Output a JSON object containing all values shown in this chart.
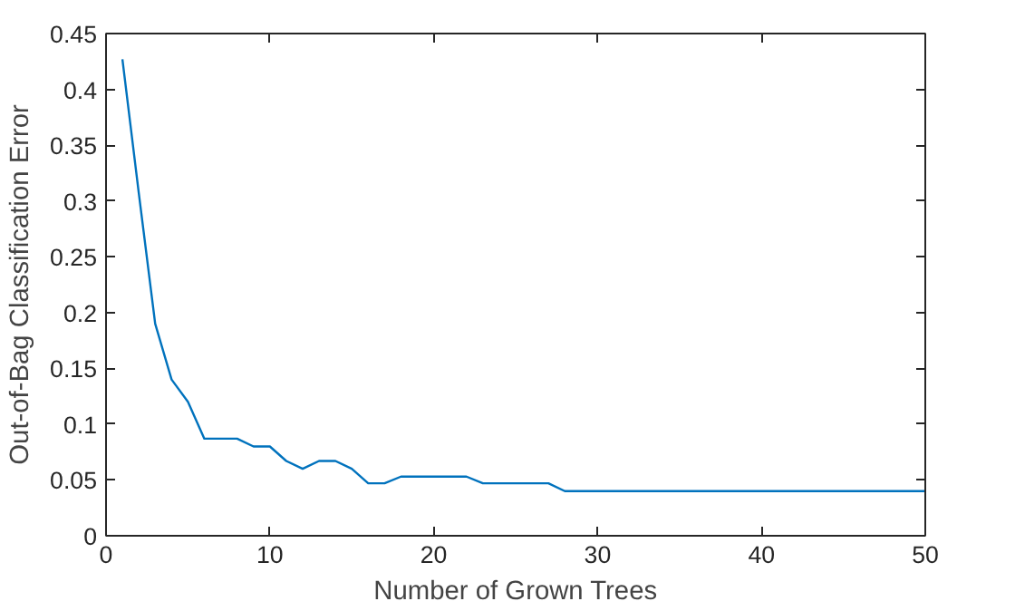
{
  "chart_data": {
    "type": "line",
    "xlabel": "Number of Grown Trees",
    "ylabel": "Out-of-Bag Classification Error",
    "x": [
      1,
      2,
      3,
      4,
      5,
      6,
      7,
      8,
      9,
      10,
      11,
      12,
      13,
      14,
      15,
      16,
      17,
      18,
      19,
      20,
      21,
      22,
      23,
      24,
      25,
      26,
      27,
      28,
      29,
      30,
      31,
      32,
      33,
      34,
      35,
      36,
      37,
      38,
      39,
      40,
      41,
      42,
      43,
      44,
      45,
      46,
      47,
      48,
      49,
      50
    ],
    "series": [
      {
        "color": "#0072bd",
        "values": [
          0.427,
          0.307,
          0.19,
          0.14,
          0.12,
          0.087,
          0.087,
          0.087,
          0.08,
          0.08,
          0.067,
          0.06,
          0.067,
          0.067,
          0.06,
          0.047,
          0.047,
          0.053,
          0.053,
          0.053,
          0.053,
          0.053,
          0.047,
          0.047,
          0.047,
          0.047,
          0.047,
          0.04,
          0.04,
          0.04,
          0.04,
          0.04,
          0.04,
          0.04,
          0.04,
          0.04,
          0.04,
          0.04,
          0.04,
          0.04,
          0.04,
          0.04,
          0.04,
          0.04,
          0.04,
          0.04,
          0.04,
          0.04,
          0.04,
          0.04
        ]
      }
    ],
    "xlim": [
      0,
      50
    ],
    "ylim": [
      0,
      0.45
    ],
    "xticks": [
      0,
      10,
      20,
      30,
      40,
      50
    ],
    "yticks": [
      0,
      0.05,
      0.1,
      0.15,
      0.2,
      0.25,
      0.3,
      0.35,
      0.4,
      0.45
    ],
    "grid": false
  }
}
